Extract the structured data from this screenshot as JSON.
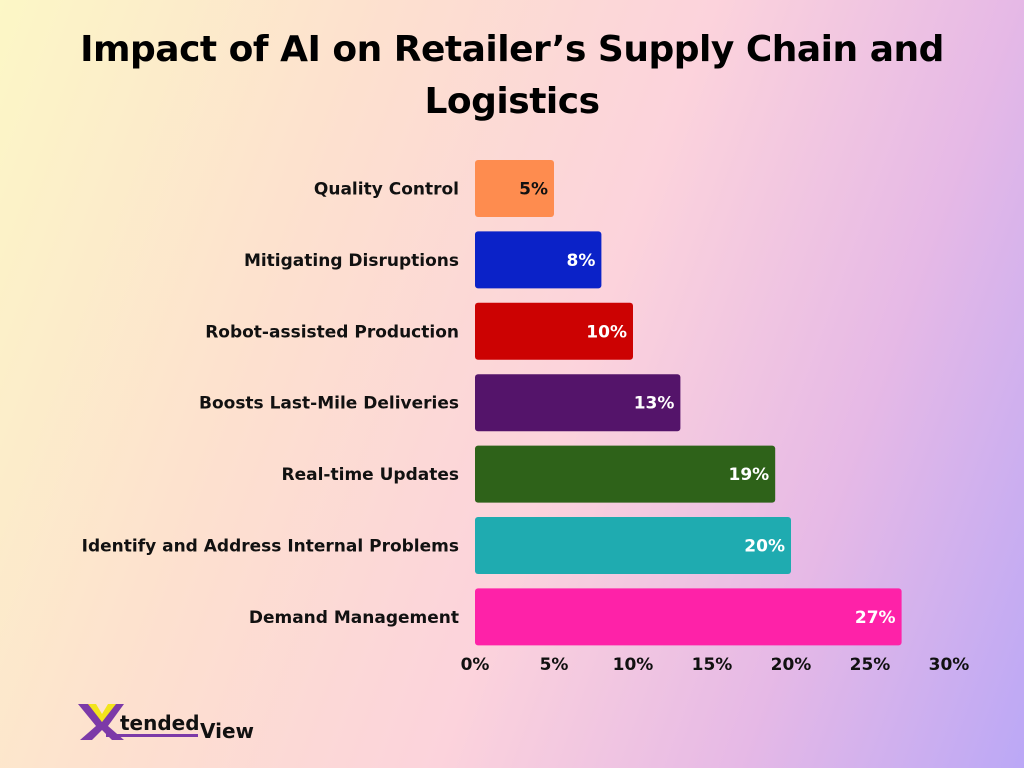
{
  "chart_data": {
    "type": "bar",
    "orientation": "horizontal",
    "title": "Impact of AI on Retailer’s Supply Chain and Logistics",
    "categories": [
      "Quality Control",
      "Mitigating Disruptions",
      "Robot-assisted Production",
      "Boosts Last-Mile Deliveries",
      "Real-time Updates",
      "Identify and Address Internal Problems",
      "Demand Management"
    ],
    "values": [
      5,
      8,
      10,
      13,
      19,
      20,
      27
    ],
    "data_labels": [
      "5%",
      "8%",
      "10%",
      "13%",
      "19%",
      "20%",
      "27%"
    ],
    "colors": [
      "#fe8c4f",
      "#0b22c8",
      "#cc0202",
      "#54146a",
      "#2e6219",
      "#1fabb0",
      "#fe22a8"
    ],
    "label_colors": [
      "#111111",
      "#ffffff",
      "#ffffff",
      "#ffffff",
      "#ffffff",
      "#ffffff",
      "#ffffff"
    ],
    "xlim": [
      0,
      30
    ],
    "xticks": [
      0,
      5,
      10,
      15,
      20,
      25,
      30
    ],
    "xtick_labels": [
      "0%",
      "5%",
      "10%",
      "15%",
      "20%",
      "25%",
      "30%"
    ],
    "xlabel": "",
    "ylabel": "",
    "grid": false,
    "legend": "none"
  },
  "logo": {
    "text_1": "X",
    "text_2": "tended",
    "text_3": "View"
  }
}
